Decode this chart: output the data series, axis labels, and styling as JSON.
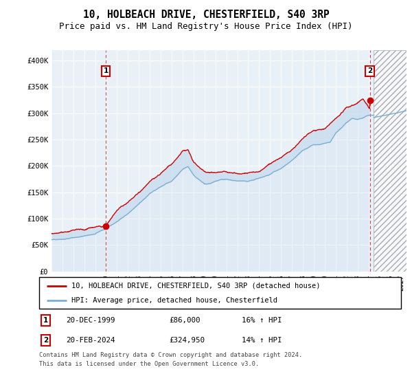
{
  "title": "10, HOLBEACH DRIVE, CHESTERFIELD, S40 3RP",
  "subtitle": "Price paid vs. HM Land Registry's House Price Index (HPI)",
  "ylim": [
    0,
    420000
  ],
  "yticks": [
    0,
    50000,
    100000,
    150000,
    200000,
    250000,
    300000,
    350000,
    400000
  ],
  "ytick_labels": [
    "£0",
    "£50K",
    "£100K",
    "£150K",
    "£200K",
    "£250K",
    "£300K",
    "£350K",
    "£400K"
  ],
  "xlim_start": 1995.0,
  "xlim_end": 2027.5,
  "xtick_years": [
    1995,
    1996,
    1997,
    1998,
    1999,
    2000,
    2001,
    2002,
    2003,
    2004,
    2005,
    2006,
    2007,
    2008,
    2009,
    2010,
    2011,
    2012,
    2013,
    2014,
    2015,
    2016,
    2017,
    2018,
    2019,
    2020,
    2021,
    2022,
    2023,
    2024,
    2025,
    2026,
    2027
  ],
  "sale1_date": 1999.97,
  "sale1_price": 86000,
  "sale1_label": "1",
  "sale2_date": 2024.13,
  "sale2_price": 324950,
  "sale2_label": "2",
  "line_color_property": "#cc0000",
  "line_color_hpi": "#7aadd4",
  "fill_color": "#ccdff0",
  "background_color": "#e8f0f8",
  "grid_color": "#ffffff",
  "legend_label1": "10, HOLBEACH DRIVE, CHESTERFIELD, S40 3RP (detached house)",
  "legend_label2": "HPI: Average price, detached house, Chesterfield",
  "table_row1": [
    "1",
    "20-DEC-1999",
    "£86,000",
    "16% ↑ HPI"
  ],
  "table_row2": [
    "2",
    "20-FEB-2024",
    "£324,950",
    "14% ↑ HPI"
  ],
  "footer": "Contains HM Land Registry data © Crown copyright and database right 2024.\nThis data is licensed under the Open Government Licence v3.0.",
  "title_fontsize": 10.5,
  "subtitle_fontsize": 9,
  "hpi_key_t": [
    1995.0,
    1996.0,
    1997.0,
    1998.0,
    1999.0,
    2000.0,
    2001.0,
    2002.0,
    2003.0,
    2004.0,
    2005.0,
    2006.0,
    2007.0,
    2007.5,
    2008.0,
    2009.0,
    2009.5,
    2010.0,
    2011.0,
    2012.0,
    2013.0,
    2014.0,
    2015.0,
    2016.0,
    2017.0,
    2018.0,
    2019.0,
    2020.0,
    2020.5,
    2021.0,
    2022.0,
    2022.5,
    2023.0,
    2024.0,
    2024.5
  ],
  "hpi_key_v": [
    60000,
    62000,
    65000,
    68000,
    72000,
    82000,
    95000,
    110000,
    128000,
    148000,
    160000,
    172000,
    195000,
    200000,
    185000,
    168000,
    168000,
    172000,
    175000,
    172000,
    172000,
    178000,
    185000,
    195000,
    210000,
    228000,
    238000,
    240000,
    242000,
    258000,
    278000,
    285000,
    282000,
    290000,
    292000
  ],
  "prop_key_t": [
    1995.0,
    1996.0,
    1997.0,
    1998.0,
    1999.0,
    1999.97,
    2000.5,
    2001.0,
    2002.0,
    2003.0,
    2004.0,
    2005.0,
    2006.0,
    2007.0,
    2007.5,
    2008.0,
    2009.0,
    2010.0,
    2011.0,
    2012.0,
    2013.0,
    2014.0,
    2015.0,
    2016.0,
    2017.0,
    2018.0,
    2019.0,
    2020.0,
    2021.0,
    2022.0,
    2023.0,
    2023.5,
    2024.0,
    2024.13
  ],
  "prop_key_v": [
    72000,
    74000,
    76000,
    78000,
    82000,
    86000,
    100000,
    115000,
    132000,
    152000,
    175000,
    192000,
    208000,
    235000,
    237000,
    215000,
    200000,
    202000,
    204000,
    200000,
    200000,
    205000,
    215000,
    228000,
    245000,
    265000,
    278000,
    282000,
    302000,
    322000,
    335000,
    342000,
    328000,
    324950
  ]
}
